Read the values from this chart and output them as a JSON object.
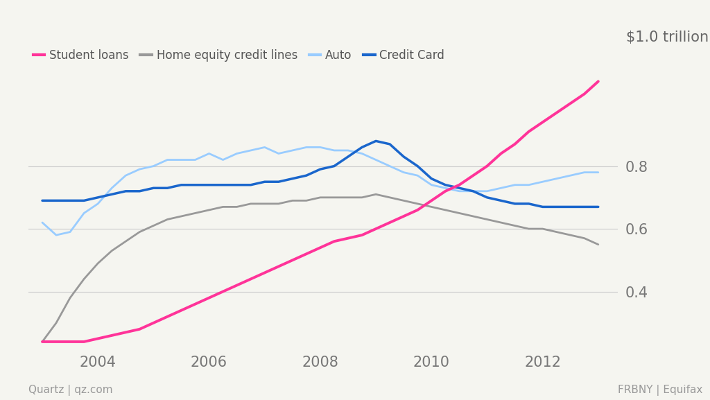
{
  "title": "$1.0 trillion",
  "xlabel_left": "Quartz | qz.com",
  "xlabel_right": "FRBNY | Equifax",
  "background_color": "#f5f5f0",
  "grid_color": "#cccccc",
  "ylim": [
    0.22,
    1.1
  ],
  "yticks": [
    0.4,
    0.6,
    0.8
  ],
  "ytick_labels": [
    "0.4",
    "0.6",
    "0.8"
  ],
  "series": {
    "student_loans": {
      "label": "Student loans",
      "color": "#ff3399",
      "linewidth": 2.8,
      "x": [
        2003.0,
        2003.25,
        2003.5,
        2003.75,
        2004.0,
        2004.25,
        2004.5,
        2004.75,
        2005.0,
        2005.25,
        2005.5,
        2005.75,
        2006.0,
        2006.25,
        2006.5,
        2006.75,
        2007.0,
        2007.25,
        2007.5,
        2007.75,
        2008.0,
        2008.25,
        2008.5,
        2008.75,
        2009.0,
        2009.25,
        2009.5,
        2009.75,
        2010.0,
        2010.25,
        2010.5,
        2010.75,
        2011.0,
        2011.25,
        2011.5,
        2011.75,
        2012.0,
        2012.25,
        2012.5,
        2012.75,
        2013.0
      ],
      "y": [
        0.24,
        0.24,
        0.24,
        0.24,
        0.25,
        0.26,
        0.27,
        0.28,
        0.3,
        0.32,
        0.34,
        0.36,
        0.38,
        0.4,
        0.42,
        0.44,
        0.46,
        0.48,
        0.5,
        0.52,
        0.54,
        0.56,
        0.57,
        0.58,
        0.6,
        0.62,
        0.64,
        0.66,
        0.69,
        0.72,
        0.74,
        0.77,
        0.8,
        0.84,
        0.87,
        0.91,
        0.94,
        0.97,
        1.0,
        1.03,
        1.07
      ]
    },
    "home_equity": {
      "label": "Home equity credit lines",
      "color": "#999999",
      "linewidth": 2.0,
      "x": [
        2003.0,
        2003.25,
        2003.5,
        2003.75,
        2004.0,
        2004.25,
        2004.5,
        2004.75,
        2005.0,
        2005.25,
        2005.5,
        2005.75,
        2006.0,
        2006.25,
        2006.5,
        2006.75,
        2007.0,
        2007.25,
        2007.5,
        2007.75,
        2008.0,
        2008.25,
        2008.5,
        2008.75,
        2009.0,
        2009.25,
        2009.5,
        2009.75,
        2010.0,
        2010.25,
        2010.5,
        2010.75,
        2011.0,
        2011.25,
        2011.5,
        2011.75,
        2012.0,
        2012.25,
        2012.5,
        2012.75,
        2013.0
      ],
      "y": [
        0.24,
        0.3,
        0.38,
        0.44,
        0.49,
        0.53,
        0.56,
        0.59,
        0.61,
        0.63,
        0.64,
        0.65,
        0.66,
        0.67,
        0.67,
        0.68,
        0.68,
        0.68,
        0.69,
        0.69,
        0.7,
        0.7,
        0.7,
        0.7,
        0.71,
        0.7,
        0.69,
        0.68,
        0.67,
        0.66,
        0.65,
        0.64,
        0.63,
        0.62,
        0.61,
        0.6,
        0.6,
        0.59,
        0.58,
        0.57,
        0.55
      ]
    },
    "auto": {
      "label": "Auto",
      "color": "#99ccff",
      "linewidth": 2.0,
      "x": [
        2003.0,
        2003.25,
        2003.5,
        2003.75,
        2004.0,
        2004.25,
        2004.5,
        2004.75,
        2005.0,
        2005.25,
        2005.5,
        2005.75,
        2006.0,
        2006.25,
        2006.5,
        2006.75,
        2007.0,
        2007.25,
        2007.5,
        2007.75,
        2008.0,
        2008.25,
        2008.5,
        2008.75,
        2009.0,
        2009.25,
        2009.5,
        2009.75,
        2010.0,
        2010.25,
        2010.5,
        2010.75,
        2011.0,
        2011.25,
        2011.5,
        2011.75,
        2012.0,
        2012.25,
        2012.5,
        2012.75,
        2013.0
      ],
      "y": [
        0.62,
        0.58,
        0.59,
        0.65,
        0.68,
        0.73,
        0.77,
        0.79,
        0.8,
        0.82,
        0.82,
        0.82,
        0.84,
        0.82,
        0.84,
        0.85,
        0.86,
        0.84,
        0.85,
        0.86,
        0.86,
        0.85,
        0.85,
        0.84,
        0.82,
        0.8,
        0.78,
        0.77,
        0.74,
        0.73,
        0.72,
        0.72,
        0.72,
        0.73,
        0.74,
        0.74,
        0.75,
        0.76,
        0.77,
        0.78,
        0.78
      ]
    },
    "credit_card": {
      "label": "Credit Card",
      "color": "#1a66cc",
      "linewidth": 2.5,
      "x": [
        2003.0,
        2003.25,
        2003.5,
        2003.75,
        2004.0,
        2004.25,
        2004.5,
        2004.75,
        2005.0,
        2005.25,
        2005.5,
        2005.75,
        2006.0,
        2006.25,
        2006.5,
        2006.75,
        2007.0,
        2007.25,
        2007.5,
        2007.75,
        2008.0,
        2008.25,
        2008.5,
        2008.75,
        2009.0,
        2009.25,
        2009.5,
        2009.75,
        2010.0,
        2010.25,
        2010.5,
        2010.75,
        2011.0,
        2011.25,
        2011.5,
        2011.75,
        2012.0,
        2012.25,
        2012.5,
        2012.75,
        2013.0
      ],
      "y": [
        0.69,
        0.69,
        0.69,
        0.69,
        0.7,
        0.71,
        0.72,
        0.72,
        0.73,
        0.73,
        0.74,
        0.74,
        0.74,
        0.74,
        0.74,
        0.74,
        0.75,
        0.75,
        0.76,
        0.77,
        0.79,
        0.8,
        0.83,
        0.86,
        0.88,
        0.87,
        0.83,
        0.8,
        0.76,
        0.74,
        0.73,
        0.72,
        0.7,
        0.69,
        0.68,
        0.68,
        0.67,
        0.67,
        0.67,
        0.67,
        0.67
      ]
    }
  },
  "legend_order": [
    "student_loans",
    "home_equity",
    "auto",
    "credit_card"
  ],
  "xlim": [
    2002.75,
    2013.35
  ],
  "xticks": [
    2004,
    2006,
    2008,
    2010,
    2012
  ]
}
